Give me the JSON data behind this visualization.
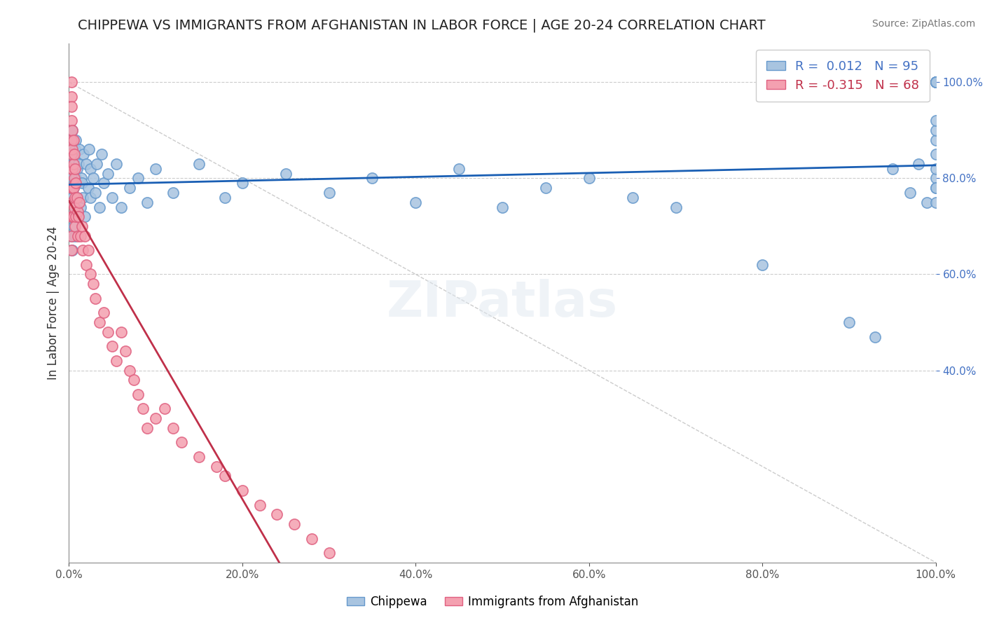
{
  "title": "CHIPPEWA VS IMMIGRANTS FROM AFGHANISTAN IN LABOR FORCE | AGE 20-24 CORRELATION CHART",
  "source": "Source: ZipAtlas.com",
  "ylabel": "In Labor Force | Age 20-24",
  "xlabel": "",
  "xlim": [
    0.0,
    1.0
  ],
  "ylim": [
    0.0,
    1.1
  ],
  "blue_label": "Chippewa",
  "pink_label": "Immigrants from Afghanistan",
  "blue_R": 0.012,
  "blue_N": 95,
  "pink_R": -0.315,
  "pink_N": 68,
  "blue_color": "#a8c4e0",
  "pink_color": "#f4a0b0",
  "blue_edge": "#6699cc",
  "pink_edge": "#e06080",
  "trend_blue_color": "#1a5fb4",
  "trend_pink_color": "#c0304a",
  "diag_color": "#cccccc",
  "background_color": "#ffffff",
  "grid_color": "#cccccc",
  "ytick_color": "#4472c4",
  "title_color": "#222222",
  "watermark": "ZIPatlas",
  "blue_x": [
    0.003,
    0.003,
    0.003,
    0.003,
    0.003,
    0.003,
    0.003,
    0.003,
    0.003,
    0.004,
    0.004,
    0.004,
    0.004,
    0.004,
    0.004,
    0.005,
    0.005,
    0.005,
    0.005,
    0.005,
    0.006,
    0.006,
    0.006,
    0.007,
    0.007,
    0.008,
    0.008,
    0.008,
    0.009,
    0.009,
    0.01,
    0.01,
    0.011,
    0.012,
    0.013,
    0.014,
    0.015,
    0.016,
    0.017,
    0.018,
    0.02,
    0.022,
    0.023,
    0.025,
    0.025,
    0.028,
    0.03,
    0.032,
    0.035,
    0.038,
    0.04,
    0.045,
    0.05,
    0.055,
    0.06,
    0.07,
    0.08,
    0.09,
    0.1,
    0.12,
    0.15,
    0.18,
    0.2,
    0.25,
    0.3,
    0.35,
    0.4,
    0.45,
    0.5,
    0.55,
    0.6,
    0.65,
    0.7,
    0.8,
    0.9,
    0.93,
    0.95,
    0.97,
    0.98,
    0.99,
    1.0,
    1.0,
    1.0,
    1.0,
    1.0,
    1.0,
    1.0,
    1.0,
    1.0,
    1.0,
    1.0,
    1.0,
    1.0,
    1.0,
    1.0
  ],
  "blue_y": [
    0.82,
    0.78,
    0.85,
    0.9,
    0.75,
    0.88,
    0.72,
    0.68,
    0.8,
    0.83,
    0.87,
    0.76,
    0.72,
    0.65,
    0.9,
    0.78,
    0.82,
    0.7,
    0.88,
    0.75,
    0.84,
    0.79,
    0.72,
    0.86,
    0.68,
    0.8,
    0.74,
    0.88,
    0.76,
    0.82,
    0.79,
    0.72,
    0.83,
    0.86,
    0.74,
    0.8,
    0.79,
    0.76,
    0.85,
    0.72,
    0.83,
    0.78,
    0.86,
    0.76,
    0.82,
    0.8,
    0.77,
    0.83,
    0.74,
    0.85,
    0.79,
    0.81,
    0.76,
    0.83,
    0.74,
    0.78,
    0.8,
    0.75,
    0.82,
    0.77,
    0.83,
    0.76,
    0.79,
    0.81,
    0.77,
    0.8,
    0.75,
    0.82,
    0.74,
    0.78,
    0.8,
    0.76,
    0.74,
    0.62,
    0.5,
    0.47,
    0.82,
    0.77,
    0.83,
    0.75,
    1.0,
    1.0,
    1.0,
    1.0,
    1.0,
    1.0,
    0.85,
    0.8,
    0.78,
    0.82,
    0.88,
    0.9,
    0.92,
    0.75,
    0.78
  ],
  "pink_x": [
    0.003,
    0.003,
    0.003,
    0.003,
    0.003,
    0.003,
    0.003,
    0.003,
    0.003,
    0.003,
    0.003,
    0.003,
    0.004,
    0.004,
    0.004,
    0.004,
    0.004,
    0.005,
    0.005,
    0.005,
    0.005,
    0.006,
    0.006,
    0.006,
    0.007,
    0.007,
    0.007,
    0.008,
    0.008,
    0.009,
    0.01,
    0.01,
    0.011,
    0.012,
    0.013,
    0.015,
    0.016,
    0.018,
    0.02,
    0.022,
    0.025,
    0.028,
    0.03,
    0.035,
    0.04,
    0.045,
    0.05,
    0.055,
    0.06,
    0.065,
    0.07,
    0.075,
    0.08,
    0.085,
    0.09,
    0.1,
    0.11,
    0.12,
    0.13,
    0.15,
    0.17,
    0.18,
    0.2,
    0.22,
    0.24,
    0.26,
    0.28,
    0.3
  ],
  "pink_y": [
    1.0,
    0.97,
    0.95,
    0.92,
    0.88,
    0.85,
    0.82,
    0.78,
    0.75,
    0.72,
    0.68,
    0.65,
    0.9,
    0.86,
    0.82,
    0.78,
    0.72,
    0.88,
    0.83,
    0.78,
    0.72,
    0.85,
    0.8,
    0.74,
    0.82,
    0.76,
    0.7,
    0.79,
    0.72,
    0.76,
    0.73,
    0.68,
    0.72,
    0.75,
    0.68,
    0.7,
    0.65,
    0.68,
    0.62,
    0.65,
    0.6,
    0.58,
    0.55,
    0.5,
    0.52,
    0.48,
    0.45,
    0.42,
    0.48,
    0.44,
    0.4,
    0.38,
    0.35,
    0.32,
    0.28,
    0.3,
    0.32,
    0.28,
    0.25,
    0.22,
    0.2,
    0.18,
    0.15,
    0.12,
    0.1,
    0.08,
    0.05,
    0.02
  ]
}
